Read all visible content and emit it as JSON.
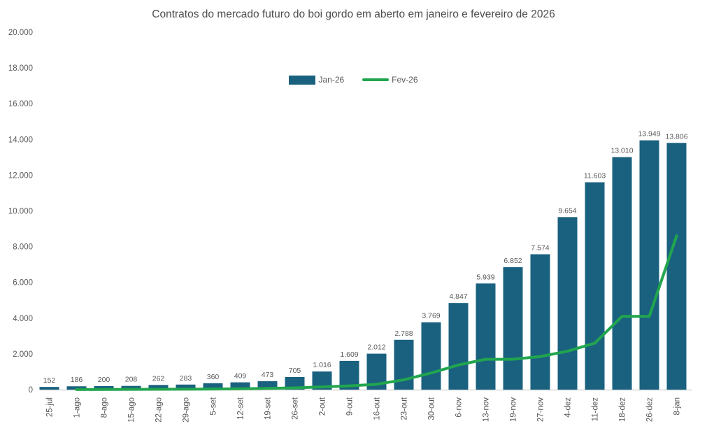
{
  "title": "Contratos do mercado futuro do boi gordo em aberto em janeiro e fevereiro de 2026",
  "legend": [
    {
      "label": "Jan-26",
      "type": "bar",
      "color": "#1A617F"
    },
    {
      "label": "Fev-26",
      "type": "line",
      "color": "#21A54E"
    }
  ],
  "colors": {
    "bar": "#1A617F",
    "line": "#21A54E",
    "text": "#595959",
    "axis_line": "#D9D9D9",
    "background": "#FFFFFF"
  },
  "chart_data": {
    "type": "bar",
    "title": "Contratos do mercado futuro do boi gordo em aberto em janeiro e fevereiro de 2026",
    "xlabel": "",
    "ylabel": "",
    "ylim": [
      0,
      20000
    ],
    "ytick_step": 2000,
    "ytick_labels": [
      "0",
      "2.000",
      "4.000",
      "6.000",
      "8.000",
      "10.000",
      "12.000",
      "14.000",
      "16.000",
      "18.000",
      "20.000"
    ],
    "grid": false,
    "legend_position": "top-center",
    "categories": [
      "25-jul",
      "1-ago",
      "8-ago",
      "15-ago",
      "22-ago",
      "29-ago",
      "5-set",
      "12-set",
      "19-set",
      "26-set",
      "2-out",
      "9-out",
      "16-out",
      "23-out",
      "30-out",
      "6-nov",
      "13-nov",
      "19-nov",
      "27-nov",
      "4-dez",
      "11-dez",
      "18-dez",
      "26-dez",
      "8-jan"
    ],
    "series": [
      {
        "name": "Jan-26",
        "type": "bar",
        "color": "#1A617F",
        "values": [
          152,
          186,
          200,
          208,
          262,
          283,
          360,
          409,
          473,
          705,
          1016,
          1609,
          2012,
          2788,
          3769,
          4847,
          5939,
          6852,
          7574,
          9654,
          11603,
          13010,
          13949,
          13806
        ],
        "labels": [
          "152",
          "186",
          "200",
          "208",
          "262",
          "283",
          "360",
          "409",
          "473",
          "705",
          "1.016",
          "1.609",
          "2.012",
          "2.788",
          "3.769",
          "4.847",
          "5.939",
          "6.852",
          "7.574",
          "9.654",
          "11.603",
          "13.010",
          "13.949",
          "13.806"
        ]
      },
      {
        "name": "Fev-26",
        "type": "line",
        "color": "#21A54E",
        "values": [
          null,
          5,
          10,
          15,
          20,
          25,
          35,
          50,
          70,
          100,
          150,
          210,
          300,
          550,
          930,
          1380,
          1700,
          1700,
          1850,
          2150,
          2600,
          4100,
          4100,
          8600
        ]
      }
    ]
  }
}
